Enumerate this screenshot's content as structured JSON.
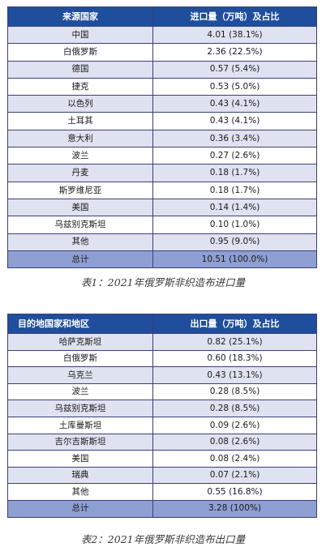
{
  "table1": {
    "headers": [
      "来源国家",
      "进口量（万吨）及占比"
    ],
    "rows": [
      {
        "country": "中国",
        "value": "4.01 (38.1%)"
      },
      {
        "country": "白俄罗斯",
        "value": "2.36 (22.5%)"
      },
      {
        "country": "德国",
        "value": "0.57 (5.4%)"
      },
      {
        "country": "捷克",
        "value": "0.53 (5.0%)"
      },
      {
        "country": "以色列",
        "value": "0.43 (4.1%)"
      },
      {
        "country": "土耳其",
        "value": "0.43 (4.1%)"
      },
      {
        "country": "意大利",
        "value": "0.36 (3.4%)"
      },
      {
        "country": "波兰",
        "value": "0.27 (2.6%)"
      },
      {
        "country": "丹麦",
        "value": "0.18 (1.7%)"
      },
      {
        "country": "斯罗维尼亚",
        "value": "0.18 (1.7%)"
      },
      {
        "country": "美国",
        "value": "0.14 (1.4%)"
      },
      {
        "country": "乌兹别克斯坦",
        "value": "0.10 (1.0%)"
      },
      {
        "country": "其他",
        "value": "0.95 (9.0%)"
      }
    ],
    "total": {
      "label": "总计",
      "value": "10.51 (100.0%)"
    },
    "caption": "表1：2021年俄罗斯非织造布进口量"
  },
  "table2": {
    "headers": [
      "目的地国家和地区",
      "出口量（万吨）及占比"
    ],
    "rows": [
      {
        "country": "哈萨克斯坦",
        "value": "0.82 (25.1%)"
      },
      {
        "country": "白俄罗斯",
        "value": "0.60 (18.3%)"
      },
      {
        "country": "乌克兰",
        "value": "0.43 (13.1%)"
      },
      {
        "country": "波兰",
        "value": "0.28 (8.5%)"
      },
      {
        "country": "乌兹别克斯坦",
        "value": "0.28 (8.5%)"
      },
      {
        "country": "土库曼斯坦",
        "value": "0.09 (2.6%)"
      },
      {
        "country": "吉尔吉斯斯坦",
        "value": "0.08 (2.6%)"
      },
      {
        "country": "美国",
        "value": "0.08 (2.4%)"
      },
      {
        "country": "瑞典",
        "value": "0.07 (2.1%)"
      },
      {
        "country": "其他",
        "value": "0.55 (16.8%)"
      }
    ],
    "total": {
      "label": "总计",
      "value": "3.28 (100%)"
    },
    "caption": "表2：2021年俄罗斯非织造布出口量"
  },
  "colors": {
    "header_bg": "#1f4e9c",
    "row_alt_bg": "#dfe2f1",
    "total_bg": "#8e9fd3",
    "border": "#3b3f78"
  }
}
